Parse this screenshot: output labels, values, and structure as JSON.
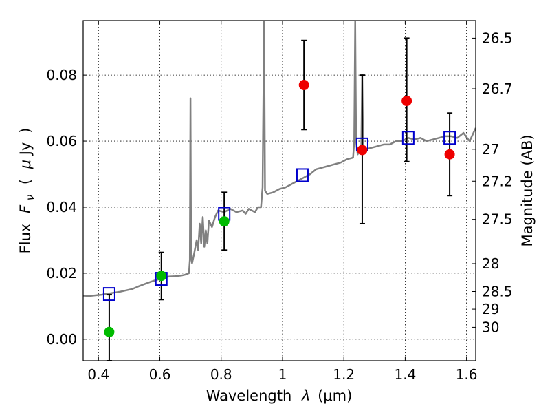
{
  "chart_data": {
    "type": "scatter",
    "xlabel": "Wavelength  λ (μm)",
    "ylabel": "Flux  Fν  ( μJy )",
    "ylabel_parts": {
      "prefix": "Flux",
      "symbol": "F",
      "subscript": "ν",
      "open_paren": "(",
      "mu": "μ",
      "unit": "Jy",
      "close_paren": ")"
    },
    "xlabel_parts": {
      "prefix": "Wavelength",
      "symbol": "λ",
      "unit": "(μm)"
    },
    "right_ylabel": "Magnitude (AB)",
    "xlim": [
      0.35,
      1.63
    ],
    "ylim": [
      -0.0065,
      0.0965
    ],
    "grid": true,
    "x_ticks": [
      {
        "value": 0.4,
        "label": "0.4"
      },
      {
        "value": 0.6,
        "label": "0.6"
      },
      {
        "value": 0.8,
        "label": "0.8"
      },
      {
        "value": 1.0,
        "label": "1"
      },
      {
        "value": 1.2,
        "label": "1.2"
      },
      {
        "value": 1.4,
        "label": "1.4"
      },
      {
        "value": 1.6,
        "label": "1.6"
      }
    ],
    "y_ticks": [
      {
        "value": 0.0,
        "label": "0.00"
      },
      {
        "value": 0.02,
        "label": "0.02"
      },
      {
        "value": 0.04,
        "label": "0.04"
      },
      {
        "value": 0.06,
        "label": "0.06"
      },
      {
        "value": 0.08,
        "label": "0.08"
      }
    ],
    "right_ticks": [
      {
        "value": 26.5,
        "label": "26.5"
      },
      {
        "value": 26.7,
        "label": "26.7"
      },
      {
        "value": 27.0,
        "label": "27"
      },
      {
        "value": 27.2,
        "label": "27.2"
      },
      {
        "value": 27.5,
        "label": "27.5"
      },
      {
        "value": 28.0,
        "label": "28"
      },
      {
        "value": 28.5,
        "label": "28.5"
      },
      {
        "value": 29.0,
        "label": "29"
      },
      {
        "value": 30.0,
        "label": "30"
      }
    ],
    "series": [
      {
        "kind": "line",
        "color": "#808080",
        "points": [
          [
            0.35,
            0.0132
          ],
          [
            0.37,
            0.0131
          ],
          [
            0.39,
            0.0133
          ],
          [
            0.41,
            0.0135
          ],
          [
            0.43,
            0.0138
          ],
          [
            0.45,
            0.0141
          ],
          [
            0.47,
            0.0144
          ],
          [
            0.49,
            0.0148
          ],
          [
            0.51,
            0.0152
          ],
          [
            0.53,
            0.016
          ],
          [
            0.55,
            0.0167
          ],
          [
            0.57,
            0.0174
          ],
          [
            0.59,
            0.018
          ],
          [
            0.61,
            0.0185
          ],
          [
            0.63,
            0.019
          ],
          [
            0.65,
            0.0191
          ],
          [
            0.67,
            0.0193
          ],
          [
            0.685,
            0.0196
          ],
          [
            0.695,
            0.02
          ],
          [
            0.698,
            0.024
          ],
          [
            0.7,
            0.073
          ],
          [
            0.702,
            0.025
          ],
          [
            0.705,
            0.023
          ],
          [
            0.712,
            0.026
          ],
          [
            0.72,
            0.03
          ],
          [
            0.725,
            0.027
          ],
          [
            0.73,
            0.035
          ],
          [
            0.735,
            0.029
          ],
          [
            0.74,
            0.037
          ],
          [
            0.745,
            0.028
          ],
          [
            0.75,
            0.033
          ],
          [
            0.755,
            0.029
          ],
          [
            0.76,
            0.036
          ],
          [
            0.77,
            0.034
          ],
          [
            0.78,
            0.037
          ],
          [
            0.79,
            0.039
          ],
          [
            0.81,
            0.0385
          ],
          [
            0.83,
            0.0395
          ],
          [
            0.85,
            0.0385
          ],
          [
            0.87,
            0.039
          ],
          [
            0.88,
            0.038
          ],
          [
            0.89,
            0.0395
          ],
          [
            0.9,
            0.039
          ],
          [
            0.91,
            0.0385
          ],
          [
            0.92,
            0.04
          ],
          [
            0.93,
            0.04
          ],
          [
            0.935,
            0.046
          ],
          [
            0.94,
            0.0965
          ],
          [
            0.943,
            0.045
          ],
          [
            0.95,
            0.044
          ],
          [
            0.97,
            0.0445
          ],
          [
            0.99,
            0.0455
          ],
          [
            1.01,
            0.046
          ],
          [
            1.03,
            0.047
          ],
          [
            1.05,
            0.048
          ],
          [
            1.07,
            0.049
          ],
          [
            1.09,
            0.05
          ],
          [
            1.11,
            0.0515
          ],
          [
            1.13,
            0.052
          ],
          [
            1.15,
            0.0525
          ],
          [
            1.17,
            0.053
          ],
          [
            1.19,
            0.0535
          ],
          [
            1.21,
            0.0545
          ],
          [
            1.23,
            0.055
          ],
          [
            1.234,
            0.06
          ],
          [
            1.237,
            0.0965
          ],
          [
            1.24,
            0.06
          ],
          [
            1.245,
            0.056
          ],
          [
            1.25,
            0.057
          ],
          [
            1.257,
            0.058
          ],
          [
            1.26,
            0.08
          ],
          [
            1.263,
            0.058
          ],
          [
            1.27,
            0.0575
          ],
          [
            1.29,
            0.058
          ],
          [
            1.31,
            0.0585
          ],
          [
            1.33,
            0.059
          ],
          [
            1.35,
            0.059
          ],
          [
            1.37,
            0.06
          ],
          [
            1.39,
            0.06
          ],
          [
            1.41,
            0.061
          ],
          [
            1.43,
            0.0605
          ],
          [
            1.45,
            0.061
          ],
          [
            1.47,
            0.06
          ],
          [
            1.49,
            0.0605
          ],
          [
            1.51,
            0.061
          ],
          [
            1.53,
            0.0615
          ],
          [
            1.55,
            0.0615
          ],
          [
            1.57,
            0.061
          ],
          [
            1.59,
            0.0625
          ],
          [
            1.61,
            0.06
          ],
          [
            1.63,
            0.064
          ]
        ]
      },
      {
        "kind": "square",
        "color": "#0000cc",
        "points": [
          [
            0.435,
            0.0137
          ],
          [
            0.605,
            0.0183
          ],
          [
            0.81,
            0.038
          ],
          [
            1.065,
            0.0497
          ],
          [
            1.26,
            0.059
          ],
          [
            1.41,
            0.061
          ],
          [
            1.545,
            0.061
          ]
        ]
      },
      {
        "kind": "circle",
        "color": "#00bb00",
        "points": [
          [
            0.435,
            0.0022
          ],
          [
            0.605,
            0.0192
          ],
          [
            0.81,
            0.0357
          ]
        ],
        "err": [
          [
            -0.0065,
            0.0135
          ],
          [
            0.012,
            0.0263
          ],
          [
            0.027,
            0.0445
          ]
        ]
      },
      {
        "kind": "circle",
        "color": "#ee0000",
        "points": [
          [
            1.07,
            0.077
          ],
          [
            1.26,
            0.0573
          ],
          [
            1.405,
            0.0722
          ],
          [
            1.545,
            0.056
          ]
        ],
        "err": [
          [
            0.0635,
            0.0905
          ],
          [
            0.035,
            0.08
          ],
          [
            0.0538,
            0.0912
          ],
          [
            0.0435,
            0.0685
          ]
        ]
      }
    ]
  }
}
